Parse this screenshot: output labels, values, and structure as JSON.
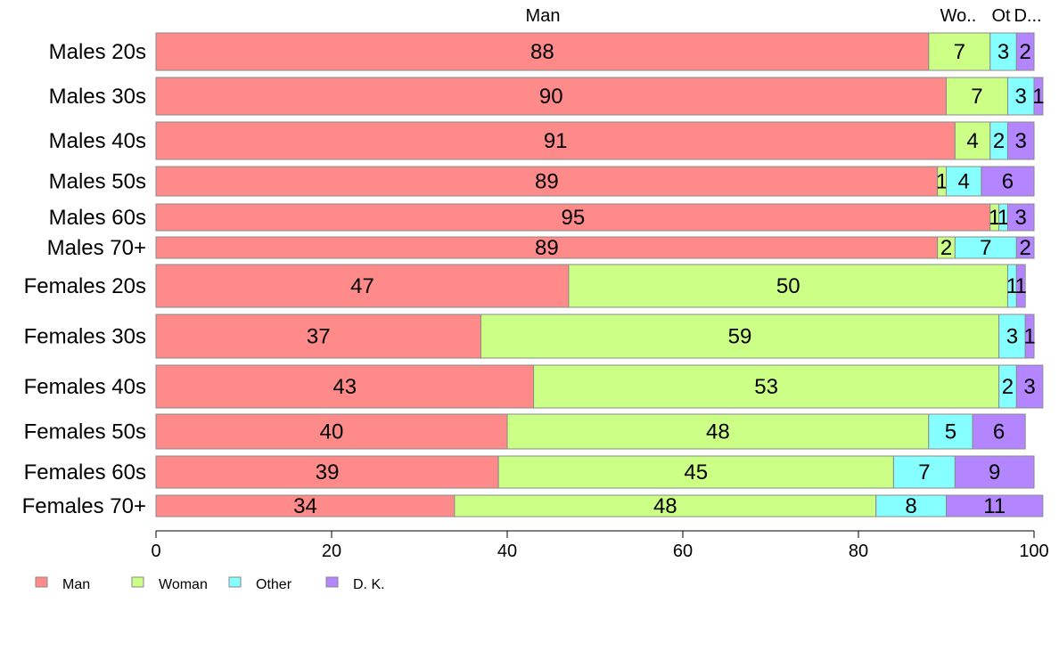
{
  "chart_data": {
    "type": "bar",
    "orientation": "horizontal",
    "stacked": true,
    "variable_width": true,
    "xlim": [
      0,
      100
    ],
    "xticks": [
      "0",
      "20",
      "40",
      "60",
      "80",
      "100"
    ],
    "top_labels": [
      "Man",
      "Wo..",
      "Ot",
      "D..."
    ],
    "grid": false,
    "legend_position": "bottom-left",
    "categories": [
      "Males 20s",
      "Males 30s",
      "Males 40s",
      "Males 50s",
      "Males 60s",
      "Males 70+",
      "Females 20s",
      "Females 30s",
      "Females 40s",
      "Females 50s",
      "Females 60s",
      "Females 70+"
    ],
    "series": [
      {
        "name": "Man",
        "color": "#ff8a8a",
        "values": [
          88,
          90,
          91,
          89,
          95,
          89,
          47,
          37,
          43,
          40,
          39,
          34
        ]
      },
      {
        "name": "Woman",
        "color": "#ccff85",
        "values": [
          7,
          7,
          4,
          1,
          1,
          2,
          50,
          59,
          53,
          48,
          45,
          48
        ]
      },
      {
        "name": "Other",
        "color": "#85ffff",
        "values": [
          3,
          3,
          2,
          4,
          1,
          7,
          1,
          3,
          2,
          5,
          7,
          8
        ]
      },
      {
        "name": "D. K.",
        "color": "#b385ff",
        "values": [
          2,
          1,
          3,
          6,
          3,
          2,
          1,
          1,
          3,
          6,
          9,
          11
        ]
      }
    ]
  }
}
